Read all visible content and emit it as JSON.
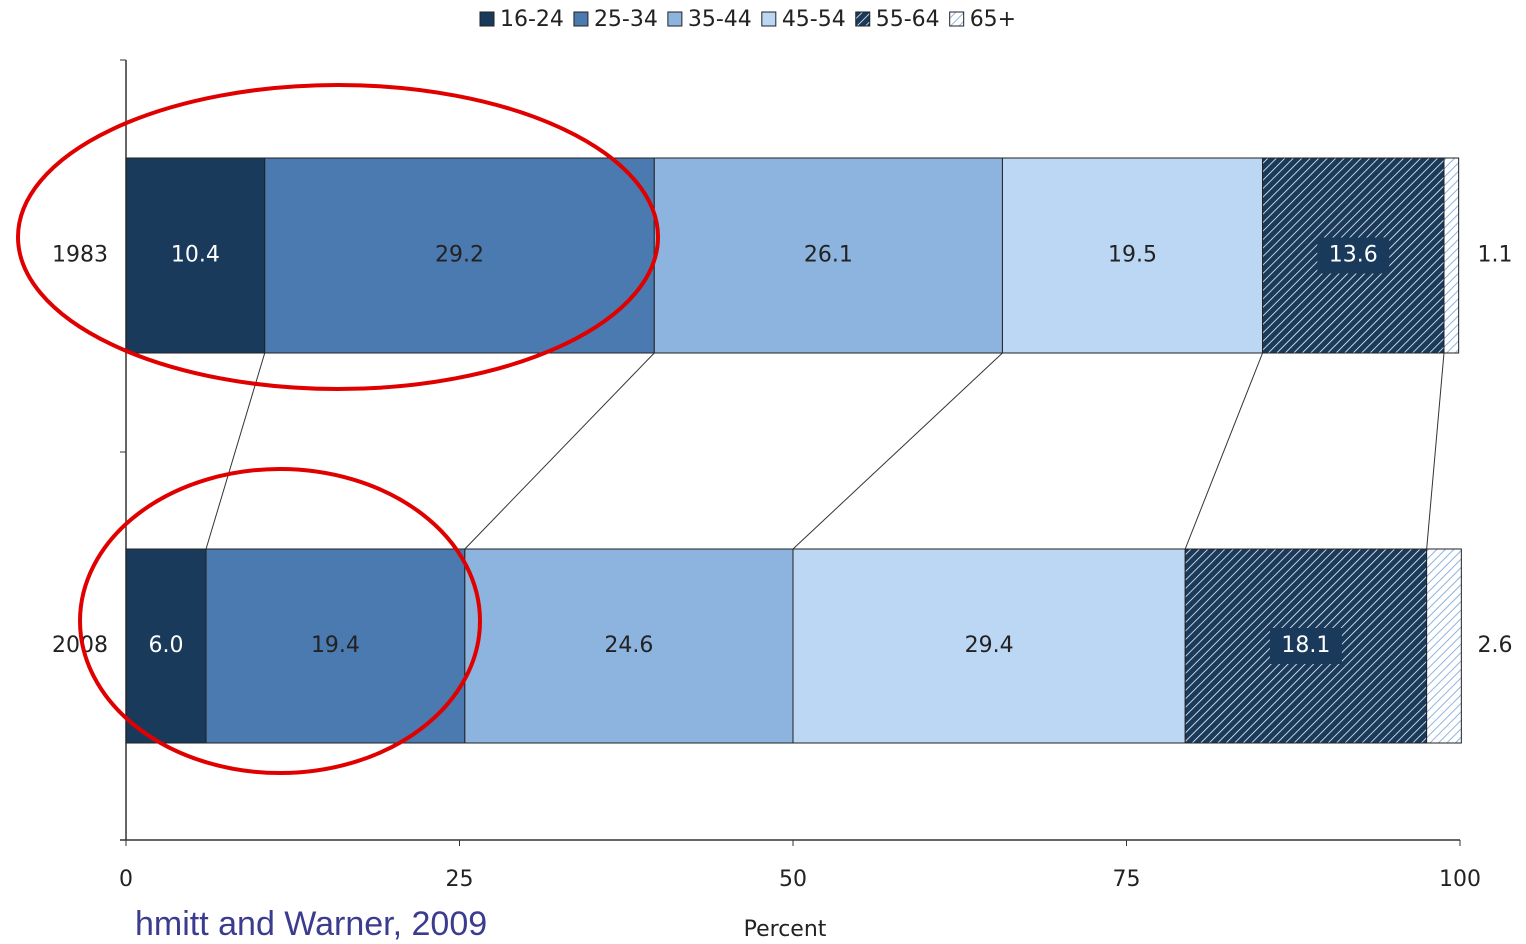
{
  "chart_data": {
    "type": "stacked-bar-horizontal",
    "categories": [
      "1983",
      "2008"
    ],
    "series": [
      {
        "name": "16-24",
        "color": "#1a3a5c",
        "values": [
          10.4,
          6.0
        ],
        "value_labels": [
          "10.4",
          "6.0"
        ]
      },
      {
        "name": "25-34",
        "color": "#4a7ab0",
        "values": [
          29.2,
          19.4
        ]
      },
      {
        "name": "35-44",
        "color": "#8db4de",
        "values": [
          26.1,
          24.6
        ]
      },
      {
        "name": "45-54",
        "color": "#bcd7f3",
        "values": [
          19.5,
          29.4
        ]
      },
      {
        "name": "55-64",
        "color": "#1a3a5c",
        "pattern": "hatch",
        "values": [
          13.6,
          18.1
        ]
      },
      {
        "name": "65+",
        "color": "#8db4de",
        "pattern": "hatch",
        "values": [
          1.1,
          2.6
        ]
      }
    ],
    "xlim": [
      0,
      100
    ],
    "xticks": [
      0,
      25,
      50,
      75,
      100
    ],
    "xlabel": "Percent",
    "annotation": "hmitt and Warner, 2009",
    "legend": "top"
  }
}
